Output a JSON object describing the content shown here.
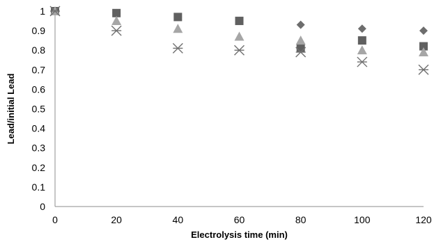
{
  "chart_data": {
    "type": "scatter",
    "title": "",
    "xlabel": "Electrolysis time (min)",
    "ylabel": "Lead/initial Lead",
    "xlim": [
      0,
      120
    ],
    "ylim": [
      0,
      1
    ],
    "x_ticks": [
      0,
      20,
      40,
      60,
      80,
      100,
      120
    ],
    "y_ticks": [
      0,
      0.1,
      0.2,
      0.3,
      0.4,
      0.5,
      0.6,
      0.7,
      0.8,
      0.9,
      1
    ],
    "grid": false,
    "legend": "none",
    "series": [
      {
        "marker": "diamond",
        "color": "#6d6d6d",
        "x": [
          0,
          20,
          40,
          60,
          80,
          100,
          120
        ],
        "y": [
          1,
          0.99,
          0.97,
          0.95,
          0.93,
          0.91,
          0.9
        ]
      },
      {
        "marker": "square",
        "color": "#606060",
        "x": [
          0,
          20,
          40,
          60,
          80,
          100,
          120
        ],
        "y": [
          1,
          0.99,
          0.97,
          0.95,
          0.81,
          0.85,
          0.82
        ]
      },
      {
        "marker": "triangle",
        "color": "#a6a6a6",
        "x": [
          0,
          20,
          40,
          60,
          80,
          100,
          120
        ],
        "y": [
          1,
          0.95,
          0.91,
          0.87,
          0.85,
          0.8,
          0.79
        ]
      },
      {
        "marker": "asterisk",
        "color": "#707070",
        "x": [
          0,
          20,
          40,
          60,
          80,
          100,
          120
        ],
        "y": [
          1,
          0.9,
          0.81,
          0.8,
          0.79,
          0.74,
          0.7
        ]
      }
    ]
  }
}
